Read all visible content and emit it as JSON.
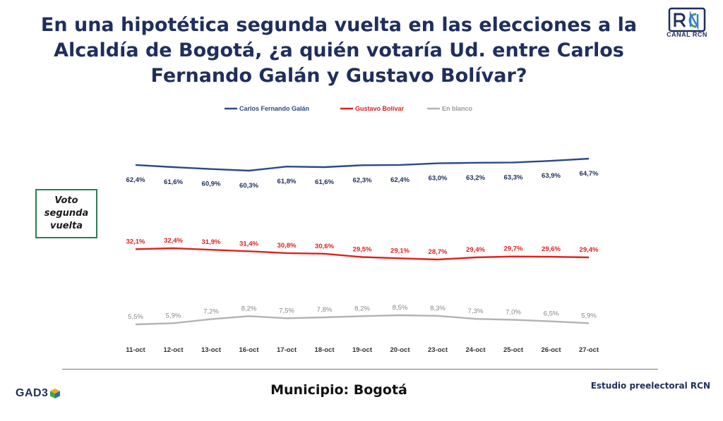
{
  "header": {
    "title": "En una hipotética segunda vuelta en las elecciones a la Alcaldía de Bogotá, ¿a quién votaría Ud. entre Carlos Fernando Galán y Gustavo Bolívar?",
    "logo_text": "CANAL RCN"
  },
  "box": {
    "label": "Voto\nsegunda\nvuelta"
  },
  "footer": {
    "brand": "GAD3",
    "municipio": "Municipio: Bogotá",
    "estudio": "Estudio preelectoral RCN"
  },
  "colors": {
    "galan": "#2b4a86",
    "bolivar": "#e0201f",
    "blanco": "#b3b3b3",
    "title": "#1f2f5c"
  },
  "chart_data": {
    "type": "line",
    "title": "En una hipotética segunda vuelta en las elecciones a la Alcaldía de Bogotá, ¿a quién votaría Ud. entre Carlos Fernando Galán y Gustavo Bolívar?",
    "legend_position": "top",
    "grid": false,
    "categories": [
      "11-oct",
      "12-oct",
      "13-oct",
      "16-oct",
      "17-oct",
      "18-oct",
      "19-oct",
      "20-oct",
      "23-oct",
      "24-oct",
      "25-oct",
      "26-oct",
      "27-oct"
    ],
    "series": [
      {
        "name": "Carlos Fernando Galán",
        "values": [
          62.4,
          61.6,
          60.9,
          60.3,
          61.8,
          61.6,
          62.3,
          62.4,
          63.0,
          63.2,
          63.3,
          63.9,
          64.7
        ],
        "labels": [
          "62,4%",
          "61,6%",
          "60,9%",
          "60,3%",
          "61,8%",
          "61,6%",
          "62,3%",
          "62,4%",
          "63,0%",
          "63,2%",
          "63,3%",
          "63,9%",
          "64,7%"
        ]
      },
      {
        "name": "Gustavo Bolívar",
        "values": [
          32.1,
          32.4,
          31.9,
          31.4,
          30.8,
          30.6,
          29.5,
          29.1,
          28.7,
          29.4,
          29.7,
          29.6,
          29.4
        ],
        "labels": [
          "32,1%",
          "32,4%",
          "31,9%",
          "31,4%",
          "30,8%",
          "30,6%",
          "29,5%",
          "29,1%",
          "28,7%",
          "29,4%",
          "29,7%",
          "29,6%",
          "29,4%"
        ]
      },
      {
        "name": "En blanco",
        "values": [
          5.5,
          5.9,
          7.2,
          8.2,
          7.5,
          7.8,
          8.2,
          8.5,
          8.3,
          7.3,
          7.0,
          6.5,
          5.9
        ],
        "labels": [
          "5,5%",
          "5,9%",
          "7,2%",
          "8,2%",
          "7,5%",
          "7,8%",
          "8,2%",
          "8,5%",
          "8,3%",
          "7,3%",
          "7,0%",
          "6,5%",
          "5,9%"
        ]
      }
    ]
  }
}
